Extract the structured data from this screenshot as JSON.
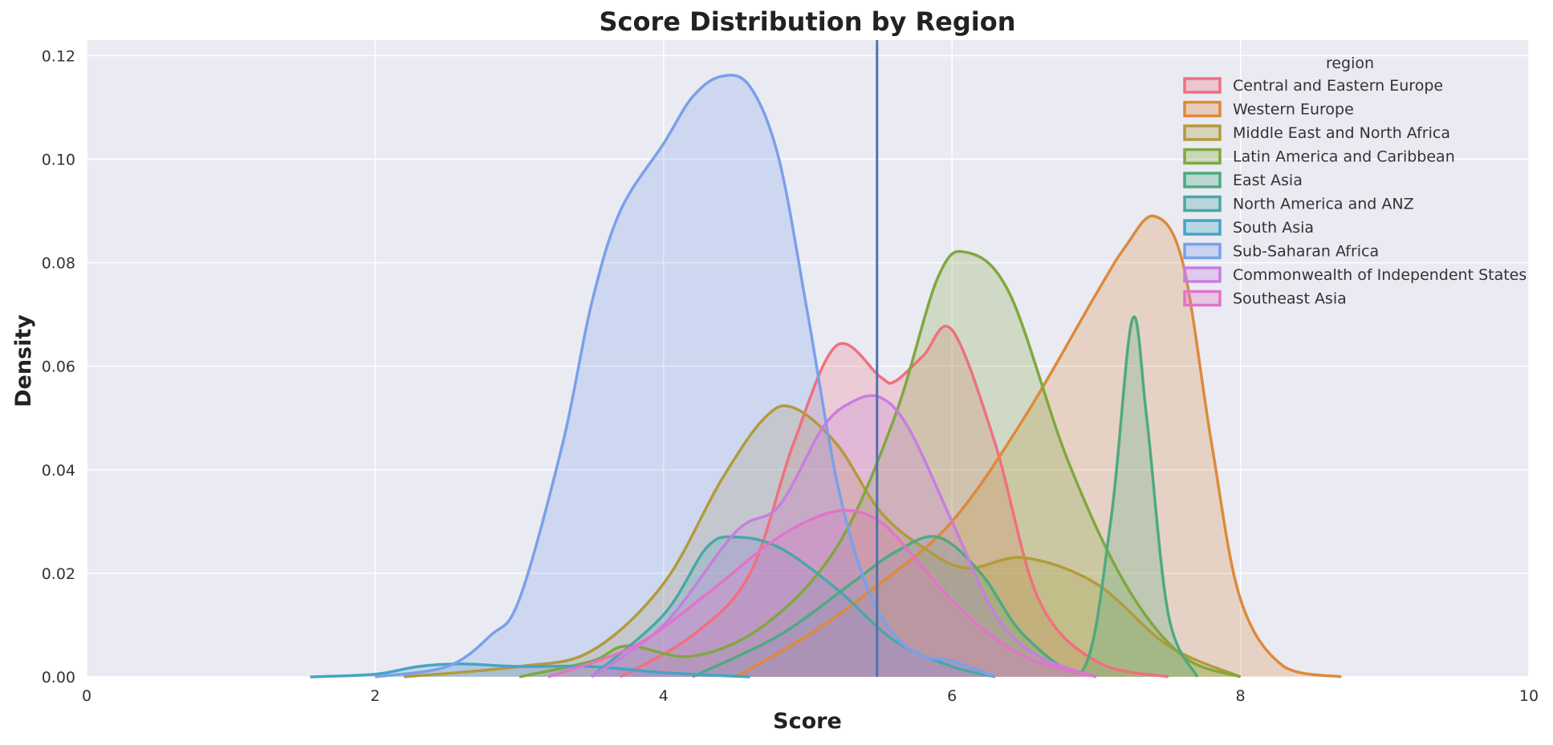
{
  "chart_data": {
    "type": "area",
    "title": "Score Distribution by Region",
    "xlabel": "Score",
    "ylabel": "Density",
    "xlim": [
      0,
      10
    ],
    "ylim": [
      0,
      0.123
    ],
    "xticks": [
      0,
      2,
      4,
      6,
      8,
      10
    ],
    "yticks": [
      0.0,
      0.02,
      0.04,
      0.06,
      0.08,
      0.1,
      0.12
    ],
    "grid": true,
    "legend": {
      "title": "region",
      "placement": "top-right"
    },
    "vline": {
      "x": 5.48,
      "color": "#4c72b0"
    },
    "series": [
      {
        "name": "Central and Eastern Europe",
        "color": "#f0707f",
        "x": [
          3.7,
          4.2,
          4.6,
          4.9,
          5.2,
          5.5,
          5.6,
          5.8,
          6.0,
          6.3,
          6.6,
          7.0,
          7.5
        ],
        "y": [
          0.0,
          0.008,
          0.02,
          0.045,
          0.064,
          0.058,
          0.057,
          0.062,
          0.067,
          0.045,
          0.015,
          0.003,
          0.0
        ]
      },
      {
        "name": "Western Europe",
        "color": "#dd8a3b",
        "x": [
          4.5,
          5.0,
          5.5,
          6.0,
          6.5,
          7.0,
          7.2,
          7.4,
          7.6,
          7.8,
          8.0,
          8.3,
          8.7
        ],
        "y": [
          0.0,
          0.008,
          0.018,
          0.03,
          0.05,
          0.074,
          0.083,
          0.089,
          0.08,
          0.045,
          0.015,
          0.002,
          0.0
        ]
      },
      {
        "name": "Middle East and North Africa",
        "color": "#b39a3c",
        "x": [
          2.2,
          3.0,
          3.5,
          4.0,
          4.4,
          4.7,
          4.9,
          5.2,
          5.5,
          5.8,
          6.1,
          6.5,
          7.0,
          7.5,
          8.0
        ],
        "y": [
          0.0,
          0.002,
          0.005,
          0.018,
          0.038,
          0.05,
          0.052,
          0.045,
          0.032,
          0.025,
          0.021,
          0.023,
          0.018,
          0.006,
          0.0
        ]
      },
      {
        "name": "Latin America and Caribbean",
        "color": "#7fa83f",
        "x": [
          3.0,
          3.5,
          3.75,
          4.2,
          4.7,
          5.2,
          5.6,
          5.9,
          6.1,
          6.4,
          6.8,
          7.2,
          7.6,
          8.0
        ],
        "y": [
          0.0,
          0.003,
          0.006,
          0.004,
          0.01,
          0.025,
          0.05,
          0.077,
          0.082,
          0.074,
          0.042,
          0.018,
          0.004,
          0.0
        ]
      },
      {
        "name": "East Asia",
        "color": "#4daa80",
        "x": [
          4.2,
          4.8,
          5.3,
          5.6,
          5.9,
          6.2,
          6.5,
          6.9,
          7.1,
          7.25,
          7.35,
          7.5,
          7.7
        ],
        "y": [
          0.0,
          0.008,
          0.018,
          0.024,
          0.027,
          0.02,
          0.008,
          0.001,
          0.03,
          0.069,
          0.05,
          0.012,
          0.0
        ]
      },
      {
        "name": "North America and ANZ",
        "color": "#4aa7a6",
        "x": [
          3.5,
          4.0,
          4.3,
          4.5,
          4.8,
          5.2,
          5.6,
          6.0,
          6.3
        ],
        "y": [
          0.0,
          0.012,
          0.025,
          0.027,
          0.025,
          0.017,
          0.007,
          0.002,
          0.0
        ]
      },
      {
        "name": "South Asia",
        "color": "#46a4c4",
        "x": [
          1.55,
          2.0,
          2.3,
          2.6,
          3.0,
          3.5,
          4.0,
          4.6
        ],
        "y": [
          0.0,
          0.0005,
          0.002,
          0.0025,
          0.002,
          0.002,
          0.0008,
          0.0
        ]
      },
      {
        "name": "Sub-Saharan Africa",
        "color": "#7aa0ea",
        "x": [
          2.0,
          2.5,
          2.8,
          3.0,
          3.3,
          3.5,
          3.7,
          4.0,
          4.2,
          4.4,
          4.6,
          4.8,
          5.0,
          5.2,
          5.4,
          5.6,
          5.8,
          6.0,
          6.3
        ],
        "y": [
          0.0,
          0.002,
          0.008,
          0.015,
          0.045,
          0.072,
          0.09,
          0.103,
          0.112,
          0.116,
          0.114,
          0.1,
          0.07,
          0.038,
          0.018,
          0.008,
          0.004,
          0.003,
          0.0
        ]
      },
      {
        "name": "Commonwealth of Independent States",
        "color": "#c77ee0",
        "x": [
          3.5,
          4.0,
          4.5,
          4.8,
          5.1,
          5.3,
          5.5,
          5.7,
          6.0,
          6.3,
          6.6,
          7.0
        ],
        "y": [
          0.0,
          0.01,
          0.028,
          0.033,
          0.048,
          0.053,
          0.054,
          0.048,
          0.03,
          0.012,
          0.004,
          0.0
        ]
      },
      {
        "name": "Southeast Asia",
        "color": "#e273c9",
        "x": [
          3.2,
          3.8,
          4.3,
          4.8,
          5.2,
          5.5,
          5.8,
          6.1,
          6.5,
          7.0
        ],
        "y": [
          0.0,
          0.006,
          0.016,
          0.027,
          0.032,
          0.03,
          0.021,
          0.012,
          0.004,
          0.0
        ]
      }
    ]
  },
  "colors": {
    "plot_background": "#eaeaf2",
    "grid": "#ffffff",
    "vline": "#4c72b0"
  }
}
